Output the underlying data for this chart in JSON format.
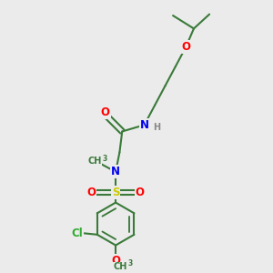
{
  "bg_color": "#ebebeb",
  "bond_color": "#3a7a3a",
  "bond_lw": 1.5,
  "atom_colors": {
    "O": "#ff0000",
    "N": "#0000ee",
    "S": "#cccc00",
    "Cl": "#33aa33",
    "H": "#888888",
    "C": "#3a7a3a"
  },
  "font_size": 8.5,
  "title": ""
}
